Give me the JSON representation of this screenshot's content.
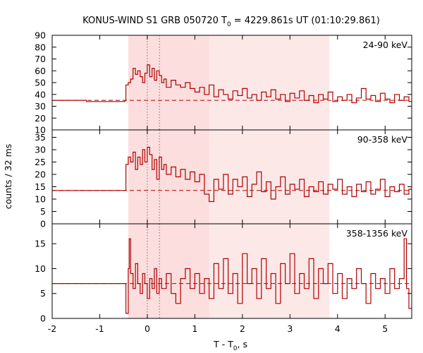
{
  "chart_data": {
    "type": "line",
    "title_pre": "KONUS-WIND S1 GRB 050720 T",
    "title_sub": "0",
    "title_post": " = 4229.861s UT (01:10:29.861)",
    "xlabel_pre": "T - T",
    "xlabel_sub": "0",
    "xlabel_post": ", s",
    "ylabel": "counts / 32 ms",
    "xlim": [
      -2,
      5.56
    ],
    "xticks": [
      "-2",
      "-1",
      "0",
      "1",
      "2",
      "3",
      "4",
      "5"
    ],
    "shaded_intervals": [
      {
        "x0": -0.4,
        "x1": 3.83,
        "color": "#fde8e8"
      },
      {
        "x0": -0.4,
        "x1": 1.3,
        "color": "#fcdede"
      }
    ],
    "vertical_lines": [
      0.0,
      0.256
    ],
    "line_color": "#b00000",
    "panels": [
      {
        "band": "24-90 keV",
        "ylim": [
          10,
          90
        ],
        "yticks": [
          "10",
          "20",
          "30",
          "40",
          "50",
          "60",
          "70",
          "80",
          "90"
        ],
        "background": 35,
        "steps": [
          {
            "x": -2.0,
            "y": 35
          },
          {
            "x": -1.28,
            "y": 34
          },
          {
            "x": -0.47,
            "y": 35
          },
          {
            "x": -0.45,
            "y": 48
          },
          {
            "x": -0.4,
            "y": 50
          },
          {
            "x": -0.35,
            "y": 53
          },
          {
            "x": -0.3,
            "y": 62
          },
          {
            "x": -0.25,
            "y": 57
          },
          {
            "x": -0.2,
            "y": 60
          },
          {
            "x": -0.15,
            "y": 55
          },
          {
            "x": -0.1,
            "y": 50
          },
          {
            "x": -0.05,
            "y": 58
          },
          {
            "x": 0.0,
            "y": 65
          },
          {
            "x": 0.05,
            "y": 55
          },
          {
            "x": 0.1,
            "y": 62
          },
          {
            "x": 0.15,
            "y": 52
          },
          {
            "x": 0.2,
            "y": 60
          },
          {
            "x": 0.25,
            "y": 56
          },
          {
            "x": 0.3,
            "y": 50
          },
          {
            "x": 0.35,
            "y": 53
          },
          {
            "x": 0.4,
            "y": 46
          },
          {
            "x": 0.5,
            "y": 52
          },
          {
            "x": 0.6,
            "y": 48
          },
          {
            "x": 0.7,
            "y": 46
          },
          {
            "x": 0.8,
            "y": 50
          },
          {
            "x": 0.9,
            "y": 45
          },
          {
            "x": 1.0,
            "y": 42
          },
          {
            "x": 1.1,
            "y": 46
          },
          {
            "x": 1.2,
            "y": 40
          },
          {
            "x": 1.3,
            "y": 48
          },
          {
            "x": 1.4,
            "y": 38
          },
          {
            "x": 1.5,
            "y": 44
          },
          {
            "x": 1.6,
            "y": 40
          },
          {
            "x": 1.7,
            "y": 36
          },
          {
            "x": 1.8,
            "y": 43
          },
          {
            "x": 1.9,
            "y": 39
          },
          {
            "x": 2.0,
            "y": 45
          },
          {
            "x": 2.1,
            "y": 37
          },
          {
            "x": 2.2,
            "y": 40
          },
          {
            "x": 2.3,
            "y": 35
          },
          {
            "x": 2.4,
            "y": 42
          },
          {
            "x": 2.5,
            "y": 38
          },
          {
            "x": 2.6,
            "y": 44
          },
          {
            "x": 2.7,
            "y": 36
          },
          {
            "x": 2.8,
            "y": 40
          },
          {
            "x": 2.9,
            "y": 34
          },
          {
            "x": 3.0,
            "y": 41
          },
          {
            "x": 3.1,
            "y": 37
          },
          {
            "x": 3.2,
            "y": 43
          },
          {
            "x": 3.3,
            "y": 35
          },
          {
            "x": 3.4,
            "y": 39
          },
          {
            "x": 3.5,
            "y": 33
          },
          {
            "x": 3.6,
            "y": 40
          },
          {
            "x": 3.7,
            "y": 36
          },
          {
            "x": 3.8,
            "y": 42
          },
          {
            "x": 3.9,
            "y": 34
          },
          {
            "x": 4.0,
            "y": 38
          },
          {
            "x": 4.1,
            "y": 35
          },
          {
            "x": 4.2,
            "y": 40
          },
          {
            "x": 4.3,
            "y": 33
          },
          {
            "x": 4.4,
            "y": 37
          },
          {
            "x": 4.5,
            "y": 45
          },
          {
            "x": 4.6,
            "y": 36
          },
          {
            "x": 4.7,
            "y": 39
          },
          {
            "x": 4.8,
            "y": 34
          },
          {
            "x": 4.9,
            "y": 41
          },
          {
            "x": 5.0,
            "y": 36
          },
          {
            "x": 5.1,
            "y": 33
          },
          {
            "x": 5.2,
            "y": 40
          },
          {
            "x": 5.3,
            "y": 35
          },
          {
            "x": 5.4,
            "y": 38
          },
          {
            "x": 5.5,
            "y": 34
          },
          {
            "x": 5.56,
            "y": 34
          }
        ]
      },
      {
        "band": "90-358 keV",
        "ylim": [
          0,
          38
        ],
        "yticks": [
          "0",
          "5",
          "10",
          "15",
          "20",
          "25",
          "30",
          "35"
        ],
        "background": 13.5,
        "steps": [
          {
            "x": -2.0,
            "y": 13.5
          },
          {
            "x": -0.47,
            "y": 13.5
          },
          {
            "x": -0.45,
            "y": 24
          },
          {
            "x": -0.4,
            "y": 27
          },
          {
            "x": -0.35,
            "y": 25
          },
          {
            "x": -0.3,
            "y": 29
          },
          {
            "x": -0.25,
            "y": 22
          },
          {
            "x": -0.2,
            "y": 27
          },
          {
            "x": -0.15,
            "y": 24
          },
          {
            "x": -0.1,
            "y": 30
          },
          {
            "x": -0.05,
            "y": 25
          },
          {
            "x": 0.0,
            "y": 31
          },
          {
            "x": 0.05,
            "y": 28
          },
          {
            "x": 0.1,
            "y": 22
          },
          {
            "x": 0.15,
            "y": 26
          },
          {
            "x": 0.2,
            "y": 18
          },
          {
            "x": 0.25,
            "y": 27
          },
          {
            "x": 0.3,
            "y": 22
          },
          {
            "x": 0.35,
            "y": 24
          },
          {
            "x": 0.4,
            "y": 20
          },
          {
            "x": 0.5,
            "y": 23
          },
          {
            "x": 0.6,
            "y": 19
          },
          {
            "x": 0.7,
            "y": 22
          },
          {
            "x": 0.8,
            "y": 18
          },
          {
            "x": 0.9,
            "y": 21
          },
          {
            "x": 1.0,
            "y": 17
          },
          {
            "x": 1.1,
            "y": 20
          },
          {
            "x": 1.2,
            "y": 12
          },
          {
            "x": 1.3,
            "y": 9
          },
          {
            "x": 1.4,
            "y": 18
          },
          {
            "x": 1.5,
            "y": 14
          },
          {
            "x": 1.6,
            "y": 20
          },
          {
            "x": 1.7,
            "y": 12
          },
          {
            "x": 1.8,
            "y": 18
          },
          {
            "x": 1.9,
            "y": 15
          },
          {
            "x": 2.0,
            "y": 19
          },
          {
            "x": 2.1,
            "y": 11
          },
          {
            "x": 2.2,
            "y": 16
          },
          {
            "x": 2.3,
            "y": 21
          },
          {
            "x": 2.4,
            "y": 13
          },
          {
            "x": 2.5,
            "y": 17
          },
          {
            "x": 2.6,
            "y": 10
          },
          {
            "x": 2.7,
            "y": 15
          },
          {
            "x": 2.8,
            "y": 19
          },
          {
            "x": 2.9,
            "y": 12
          },
          {
            "x": 3.0,
            "y": 16
          },
          {
            "x": 3.1,
            "y": 14
          },
          {
            "x": 3.2,
            "y": 18
          },
          {
            "x": 3.3,
            "y": 11
          },
          {
            "x": 3.4,
            "y": 15
          },
          {
            "x": 3.5,
            "y": 13
          },
          {
            "x": 3.6,
            "y": 17
          },
          {
            "x": 3.7,
            "y": 12
          },
          {
            "x": 3.8,
            "y": 16
          },
          {
            "x": 3.9,
            "y": 14
          },
          {
            "x": 4.0,
            "y": 18
          },
          {
            "x": 4.1,
            "y": 12
          },
          {
            "x": 4.2,
            "y": 15
          },
          {
            "x": 4.3,
            "y": 11
          },
          {
            "x": 4.4,
            "y": 16
          },
          {
            "x": 4.5,
            "y": 13
          },
          {
            "x": 4.6,
            "y": 17
          },
          {
            "x": 4.7,
            "y": 12
          },
          {
            "x": 4.8,
            "y": 14
          },
          {
            "x": 4.9,
            "y": 18
          },
          {
            "x": 5.0,
            "y": 11
          },
          {
            "x": 5.1,
            "y": 15
          },
          {
            "x": 5.2,
            "y": 13
          },
          {
            "x": 5.3,
            "y": 16
          },
          {
            "x": 5.4,
            "y": 12
          },
          {
            "x": 5.5,
            "y": 14
          },
          {
            "x": 5.56,
            "y": 14
          }
        ]
      },
      {
        "band": "358-1356 keV",
        "ylim": [
          0,
          19
        ],
        "yticks": [
          "0",
          "5",
          "10",
          "15"
        ],
        "background": 7,
        "steps": [
          {
            "x": -2.0,
            "y": 7
          },
          {
            "x": -0.47,
            "y": 7
          },
          {
            "x": -0.45,
            "y": 1
          },
          {
            "x": -0.4,
            "y": 10
          },
          {
            "x": -0.38,
            "y": 16
          },
          {
            "x": -0.35,
            "y": 9
          },
          {
            "x": -0.3,
            "y": 6
          },
          {
            "x": -0.25,
            "y": 11
          },
          {
            "x": -0.2,
            "y": 7
          },
          {
            "x": -0.15,
            "y": 5
          },
          {
            "x": -0.1,
            "y": 9
          },
          {
            "x": -0.05,
            "y": 7
          },
          {
            "x": 0.0,
            "y": 4
          },
          {
            "x": 0.05,
            "y": 8
          },
          {
            "x": 0.1,
            "y": 6
          },
          {
            "x": 0.15,
            "y": 10
          },
          {
            "x": 0.2,
            "y": 5
          },
          {
            "x": 0.25,
            "y": 8
          },
          {
            "x": 0.3,
            "y": 6
          },
          {
            "x": 0.4,
            "y": 9
          },
          {
            "x": 0.5,
            "y": 5
          },
          {
            "x": 0.6,
            "y": 3
          },
          {
            "x": 0.7,
            "y": 8
          },
          {
            "x": 0.8,
            "y": 10
          },
          {
            "x": 0.9,
            "y": 6
          },
          {
            "x": 1.0,
            "y": 9
          },
          {
            "x": 1.1,
            "y": 5
          },
          {
            "x": 1.2,
            "y": 8
          },
          {
            "x": 1.3,
            "y": 4
          },
          {
            "x": 1.4,
            "y": 11
          },
          {
            "x": 1.5,
            "y": 6
          },
          {
            "x": 1.6,
            "y": 12
          },
          {
            "x": 1.7,
            "y": 5
          },
          {
            "x": 1.8,
            "y": 9
          },
          {
            "x": 1.9,
            "y": 3
          },
          {
            "x": 2.0,
            "y": 13
          },
          {
            "x": 2.1,
            "y": 7
          },
          {
            "x": 2.2,
            "y": 10
          },
          {
            "x": 2.3,
            "y": 4
          },
          {
            "x": 2.4,
            "y": 12
          },
          {
            "x": 2.5,
            "y": 6
          },
          {
            "x": 2.6,
            "y": 9
          },
          {
            "x": 2.7,
            "y": 3
          },
          {
            "x": 2.8,
            "y": 11
          },
          {
            "x": 2.9,
            "y": 7
          },
          {
            "x": 3.0,
            "y": 13
          },
          {
            "x": 3.1,
            "y": 5
          },
          {
            "x": 3.2,
            "y": 9
          },
          {
            "x": 3.3,
            "y": 6
          },
          {
            "x": 3.4,
            "y": 12
          },
          {
            "x": 3.5,
            "y": 4
          },
          {
            "x": 3.6,
            "y": 10
          },
          {
            "x": 3.7,
            "y": 7
          },
          {
            "x": 3.8,
            "y": 11
          },
          {
            "x": 3.9,
            "y": 5
          },
          {
            "x": 4.0,
            "y": 9
          },
          {
            "x": 4.1,
            "y": 4
          },
          {
            "x": 4.2,
            "y": 8
          },
          {
            "x": 4.3,
            "y": 6
          },
          {
            "x": 4.4,
            "y": 10
          },
          {
            "x": 4.5,
            "y": 7
          },
          {
            "x": 4.6,
            "y": 3
          },
          {
            "x": 4.7,
            "y": 9
          },
          {
            "x": 4.8,
            "y": 6
          },
          {
            "x": 4.9,
            "y": 8
          },
          {
            "x": 5.0,
            "y": 5
          },
          {
            "x": 5.1,
            "y": 10
          },
          {
            "x": 5.2,
            "y": 6
          },
          {
            "x": 5.3,
            "y": 8
          },
          {
            "x": 5.4,
            "y": 16
          },
          {
            "x": 5.45,
            "y": 6
          },
          {
            "x": 5.5,
            "y": 2
          },
          {
            "x": 5.56,
            "y": 2
          }
        ]
      }
    ]
  }
}
